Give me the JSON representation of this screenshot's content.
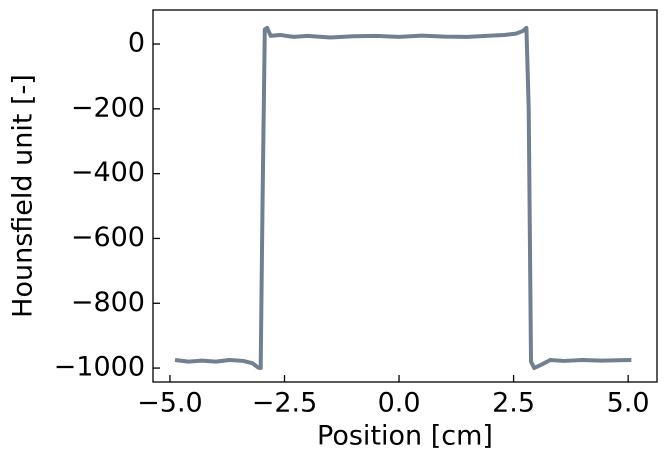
{
  "chart_data": {
    "type": "line",
    "xlabel": "Position [cm]",
    "ylabel": "Hounsfield unit [-]",
    "series": [
      {
        "color": "#708090",
        "x": [
          -4.89,
          -4.6,
          -4.3,
          -4.0,
          -3.7,
          -3.4,
          -3.2,
          -3.08,
          -3.02,
          -2.98,
          -2.93,
          -2.88,
          -2.8,
          -2.6,
          -2.3,
          -2.0,
          -1.5,
          -1.0,
          -0.5,
          0,
          0.5,
          1.0,
          1.5,
          2.0,
          2.3,
          2.55,
          2.7,
          2.78,
          2.83,
          2.88,
          2.95,
          3.1,
          3.3,
          3.6,
          4.0,
          4.4,
          4.8,
          5.07
        ],
        "values": [
          -975,
          -980,
          -977,
          -980,
          -975,
          -978,
          -985,
          -998,
          -1000,
          -500,
          45,
          50,
          25,
          28,
          22,
          25,
          20,
          24,
          25,
          22,
          26,
          23,
          22,
          26,
          28,
          32,
          40,
          50,
          -200,
          -980,
          -1000,
          -990,
          -975,
          -978,
          -975,
          -977,
          -976,
          -975
        ]
      }
    ],
    "xlim": [
      -5.37,
      5.63
    ],
    "ylim": [
      -1043,
      105
    ],
    "xticks": [
      {
        "value": -5,
        "label": "−5.0"
      },
      {
        "value": -2.5,
        "label": "−2.5"
      },
      {
        "value": 0,
        "label": "0.0"
      },
      2.5,
      {
        "value": 5,
        "label": "5.0"
      }
    ],
    "yticks": [
      0,
      {
        "value": -200,
        "label": "−200"
      },
      {
        "value": -400,
        "label": "−400"
      },
      {
        "value": -600,
        "label": "−600"
      },
      {
        "value": -800,
        "label": "−800"
      },
      {
        "value": -1000,
        "label": "−1000"
      }
    ]
  }
}
